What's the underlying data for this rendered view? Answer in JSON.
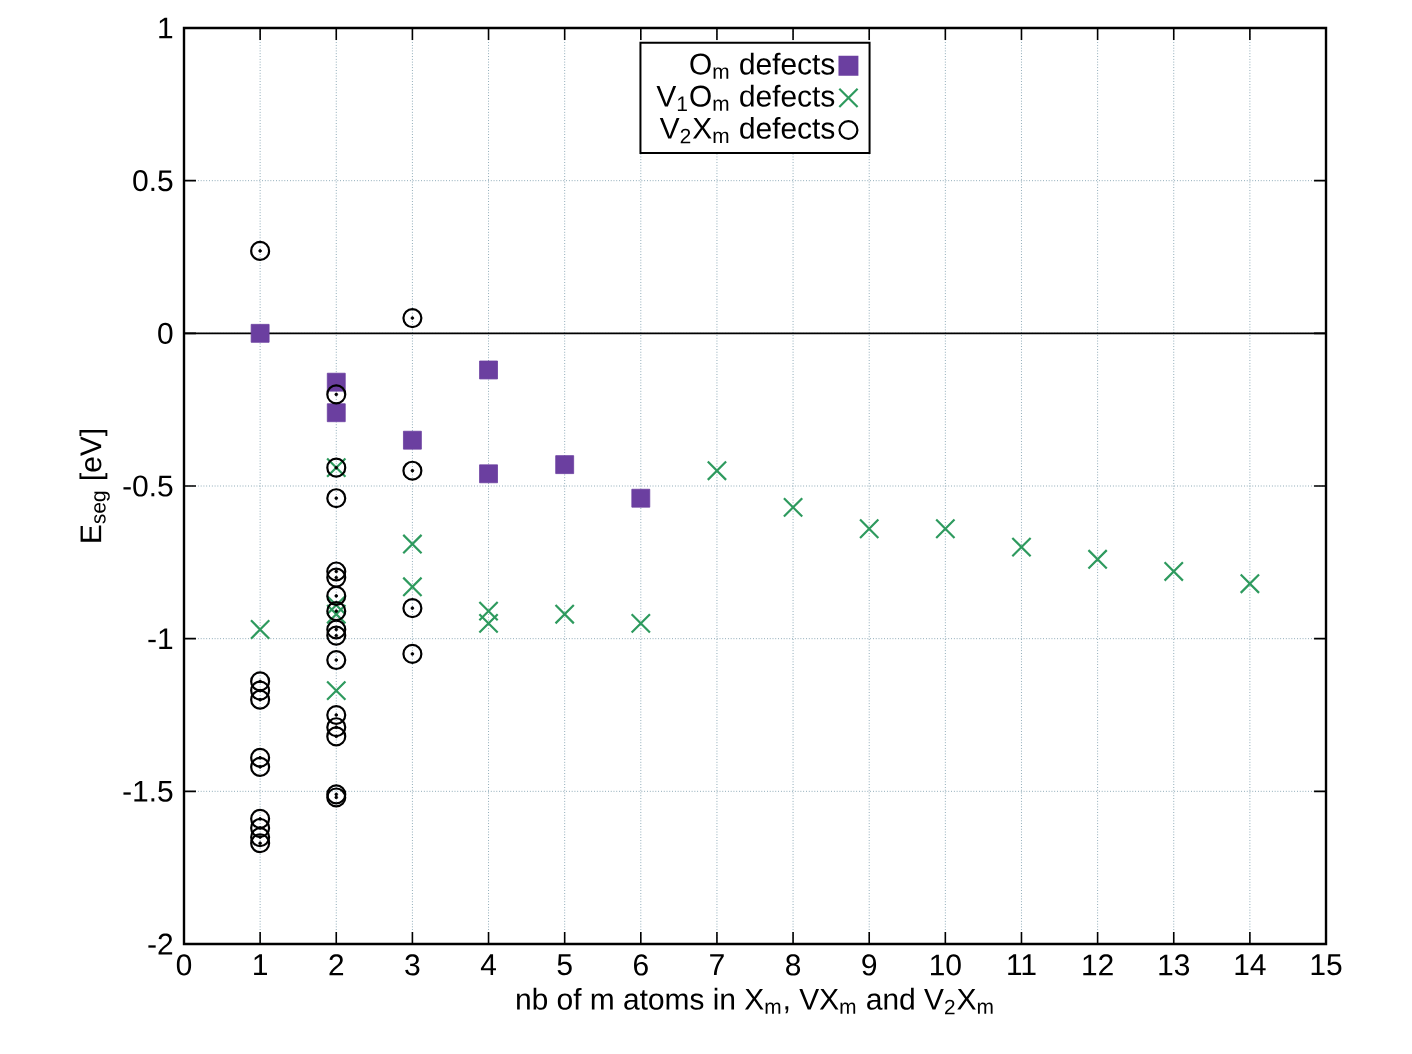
{
  "chart_data": {
    "type": "scatter",
    "xlabel": "nb of m atoms in X$_{m}$, VX$_{m}$ and V$_{2}$X$_{m}$",
    "ylabel": "E$_{seg}$ [eV]",
    "xlim": [
      0,
      15
    ],
    "xticks": [
      0,
      1,
      2,
      3,
      4,
      5,
      6,
      7,
      8,
      9,
      10,
      11,
      12,
      13,
      14,
      15
    ],
    "ylim": [
      -2,
      1
    ],
    "yticks": [
      -2,
      -1.5,
      -1,
      -0.5,
      0,
      0.5,
      1
    ],
    "grid": true,
    "legend": "top center",
    "ref_lines": [
      {
        "axis": "y",
        "value": 0,
        "color": "#000000",
        "line_style": "solid"
      }
    ],
    "series": [
      {
        "name": "O$_{m}$ defects",
        "color": "#6b3fa0",
        "marker": "square",
        "x": [
          1,
          2,
          2,
          3,
          4,
          4,
          5,
          6
        ],
        "values": [
          0,
          -0.16,
          -0.26,
          -0.35,
          -0.12,
          -0.46,
          -0.43,
          -0.54
        ]
      },
      {
        "name": "V$_{1}$O$_{m}$ defects",
        "color": "#2e9a5e",
        "marker": "cross",
        "x": [
          1,
          2,
          2,
          2,
          2,
          3,
          3,
          4,
          4,
          5,
          6,
          7,
          8,
          9,
          10,
          11,
          12,
          13,
          14
        ],
        "values": [
          -0.97,
          -0.44,
          -0.89,
          -0.92,
          -1.17,
          -0.69,
          -0.83,
          -0.91,
          -0.95,
          -0.92,
          -0.95,
          -0.45,
          -0.57,
          -0.64,
          -0.64,
          -0.7,
          -0.74,
          -0.78,
          -0.82
        ]
      },
      {
        "name": "V$_{2}$X$_{m}$ defects",
        "color": "#000000",
        "marker": "circle",
        "x": [
          1,
          1,
          1,
          1,
          1,
          1,
          1,
          1,
          1,
          1,
          2,
          2,
          2,
          2,
          2,
          2,
          2,
          2,
          2,
          2,
          2,
          2,
          2,
          2,
          2,
          3,
          3,
          3,
          3
        ],
        "values": [
          0.27,
          -1.14,
          -1.17,
          -1.2,
          -1.39,
          -1.42,
          -1.59,
          -1.62,
          -1.65,
          -1.67,
          -0.2,
          -0.44,
          -0.54,
          -0.78,
          -0.8,
          -0.86,
          -0.91,
          -0.97,
          -0.99,
          -1.07,
          -1.25,
          -1.29,
          -1.32,
          -1.51,
          -1.52,
          0.05,
          -0.45,
          -0.9,
          -1.05
        ]
      }
    ]
  }
}
